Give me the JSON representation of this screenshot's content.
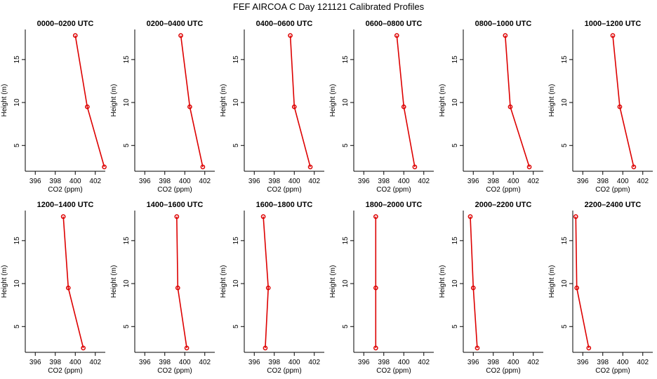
{
  "figure_title": "FEF AIRCOA C  Day 121121  Calibrated Profiles",
  "chart_data": [
    {
      "type": "line",
      "title": "0000–0200 UTC",
      "xlabel": "CO2 (ppm)",
      "ylabel": "Height (m)",
      "xlim": [
        395,
        403
      ],
      "ylim": [
        2,
        18.5
      ],
      "xticks": [
        396,
        398,
        400,
        402
      ],
      "yticks": [
        5,
        10,
        15
      ],
      "points": [
        {
          "x": 400.0,
          "y": 17.8
        },
        {
          "x": 401.2,
          "y": 9.5
        },
        {
          "x": 402.9,
          "y": 2.5
        }
      ]
    },
    {
      "type": "line",
      "title": "0200–0400 UTC",
      "xlabel": "CO2 (ppm)",
      "ylabel": "Height (m)",
      "xlim": [
        395,
        403
      ],
      "ylim": [
        2,
        18.5
      ],
      "xticks": [
        396,
        398,
        400,
        402
      ],
      "yticks": [
        5,
        10,
        15
      ],
      "points": [
        {
          "x": 399.6,
          "y": 17.8
        },
        {
          "x": 400.5,
          "y": 9.5
        },
        {
          "x": 401.8,
          "y": 2.5
        }
      ]
    },
    {
      "type": "line",
      "title": "0400–0600 UTC",
      "xlabel": "CO2 (ppm)",
      "ylabel": "Height (m)",
      "xlim": [
        395,
        403
      ],
      "ylim": [
        2,
        18.5
      ],
      "xticks": [
        396,
        398,
        400,
        402
      ],
      "yticks": [
        5,
        10,
        15
      ],
      "points": [
        {
          "x": 399.6,
          "y": 17.8
        },
        {
          "x": 400.0,
          "y": 9.5
        },
        {
          "x": 401.6,
          "y": 2.5
        }
      ]
    },
    {
      "type": "line",
      "title": "0600–0800 UTC",
      "xlabel": "CO2 (ppm)",
      "ylabel": "Height (m)",
      "xlim": [
        395,
        403
      ],
      "ylim": [
        2,
        18.5
      ],
      "xticks": [
        396,
        398,
        400,
        402
      ],
      "yticks": [
        5,
        10,
        15
      ],
      "points": [
        {
          "x": 399.3,
          "y": 17.8
        },
        {
          "x": 400.0,
          "y": 9.5
        },
        {
          "x": 401.1,
          "y": 2.5
        }
      ]
    },
    {
      "type": "line",
      "title": "0800–1000 UTC",
      "xlabel": "CO2 (ppm)",
      "ylabel": "Height (m)",
      "xlim": [
        395,
        403
      ],
      "ylim": [
        2,
        18.5
      ],
      "xticks": [
        396,
        398,
        400,
        402
      ],
      "yticks": [
        5,
        10,
        15
      ],
      "points": [
        {
          "x": 399.2,
          "y": 17.8
        },
        {
          "x": 399.7,
          "y": 9.5
        },
        {
          "x": 401.6,
          "y": 2.5
        }
      ]
    },
    {
      "type": "line",
      "title": "1000–1200 UTC",
      "xlabel": "CO2 (ppm)",
      "ylabel": "Height (m)",
      "xlim": [
        395,
        403
      ],
      "ylim": [
        2,
        18.5
      ],
      "xticks": [
        396,
        398,
        400,
        402
      ],
      "yticks": [
        5,
        10,
        15
      ],
      "points": [
        {
          "x": 399.0,
          "y": 17.8
        },
        {
          "x": 399.7,
          "y": 9.5
        },
        {
          "x": 401.1,
          "y": 2.5
        }
      ]
    },
    {
      "type": "line",
      "title": "1200–1400 UTC",
      "xlabel": "CO2 (ppm)",
      "ylabel": "Height (m)",
      "xlim": [
        395,
        403
      ],
      "ylim": [
        2,
        18.5
      ],
      "xticks": [
        396,
        398,
        400,
        402
      ],
      "yticks": [
        5,
        10,
        15
      ],
      "points": [
        {
          "x": 398.8,
          "y": 17.8
        },
        {
          "x": 399.3,
          "y": 9.5
        },
        {
          "x": 400.8,
          "y": 2.5
        }
      ]
    },
    {
      "type": "line",
      "title": "1400–1600 UTC",
      "xlabel": "CO2 (ppm)",
      "ylabel": "Height (m)",
      "xlim": [
        395,
        403
      ],
      "ylim": [
        2,
        18.5
      ],
      "xticks": [
        396,
        398,
        400,
        402
      ],
      "yticks": [
        5,
        10,
        15
      ],
      "points": [
        {
          "x": 399.2,
          "y": 17.8
        },
        {
          "x": 399.3,
          "y": 9.5
        },
        {
          "x": 400.2,
          "y": 2.5
        }
      ]
    },
    {
      "type": "line",
      "title": "1600–1800 UTC",
      "xlabel": "CO2 (ppm)",
      "ylabel": "Height (m)",
      "xlim": [
        395,
        403
      ],
      "ylim": [
        2,
        18.5
      ],
      "xticks": [
        396,
        398,
        400,
        402
      ],
      "yticks": [
        5,
        10,
        15
      ],
      "points": [
        {
          "x": 396.9,
          "y": 17.8
        },
        {
          "x": 397.4,
          "y": 9.5
        },
        {
          "x": 397.1,
          "y": 2.5
        }
      ]
    },
    {
      "type": "line",
      "title": "1800–2000 UTC",
      "xlabel": "CO2 (ppm)",
      "ylabel": "Height (m)",
      "xlim": [
        395,
        403
      ],
      "ylim": [
        2,
        18.5
      ],
      "xticks": [
        396,
        398,
        400,
        402
      ],
      "yticks": [
        5,
        10,
        15
      ],
      "points": [
        {
          "x": 397.2,
          "y": 17.8
        },
        {
          "x": 397.2,
          "y": 9.5
        },
        {
          "x": 397.2,
          "y": 2.5
        }
      ]
    },
    {
      "type": "line",
      "title": "2000–2200 UTC",
      "xlabel": "CO2 (ppm)",
      "ylabel": "Height (m)",
      "xlim": [
        395,
        403
      ],
      "ylim": [
        2,
        18.5
      ],
      "xticks": [
        396,
        398,
        400,
        402
      ],
      "yticks": [
        5,
        10,
        15
      ],
      "points": [
        {
          "x": 395.7,
          "y": 17.8
        },
        {
          "x": 396.0,
          "y": 9.5
        },
        {
          "x": 396.4,
          "y": 2.5
        }
      ]
    },
    {
      "type": "line",
      "title": "2200–2400 UTC",
      "xlabel": "CO2 (ppm)",
      "ylabel": "Height (m)",
      "xlim": [
        395,
        403
      ],
      "ylim": [
        2,
        18.5
      ],
      "xticks": [
        396,
        398,
        400,
        402
      ],
      "yticks": [
        5,
        10,
        15
      ],
      "points": [
        {
          "x": 395.3,
          "y": 17.8
        },
        {
          "x": 395.4,
          "y": 9.5
        },
        {
          "x": 396.6,
          "y": 2.5
        }
      ]
    }
  ],
  "colors": {
    "series": "#dd0000",
    "axis": "#000000",
    "background": "#ffffff"
  }
}
